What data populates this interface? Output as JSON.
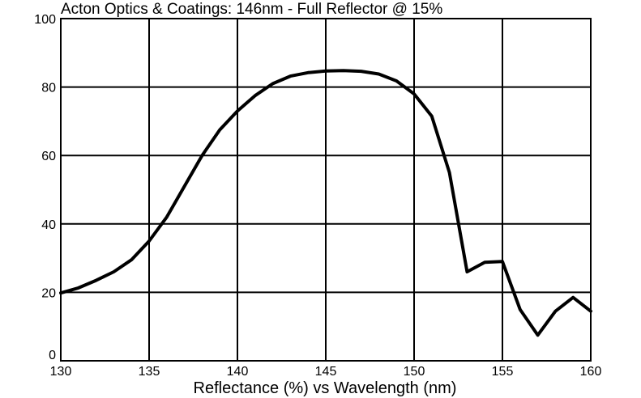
{
  "chart_data": {
    "type": "line",
    "title": "Acton Optics & Coatings:  146nm - Full Reflector @ 15%",
    "xlabel": "Reflectance  (%)   vs   Wavelength  (nm)",
    "ylabel": "",
    "xlim": [
      130,
      160
    ],
    "ylim": [
      0,
      100
    ],
    "x_ticks": [
      "130",
      "135",
      "140",
      "145",
      "150",
      "155",
      "160"
    ],
    "y_ticks": [
      "0",
      "20",
      "40",
      "60",
      "80",
      "100"
    ],
    "grid": true,
    "line_color": "#000000",
    "series": [
      {
        "x": [
          130,
          131,
          132,
          133,
          134,
          135,
          136,
          137,
          138,
          139,
          140,
          141,
          142,
          143,
          144,
          145,
          146,
          147,
          148,
          149,
          150,
          151,
          152,
          153,
          154,
          155,
          156,
          157,
          158,
          159,
          160
        ],
        "values": [
          19.8,
          21.3,
          23.5,
          26.0,
          29.5,
          35.0,
          42.0,
          51.0,
          60.0,
          67.5,
          73.0,
          77.5,
          81.0,
          83.2,
          84.2,
          84.7,
          84.8,
          84.6,
          83.8,
          81.8,
          78.0,
          71.5,
          55.0,
          26.0,
          28.8,
          29.0,
          15.0,
          7.5,
          14.5,
          18.5,
          14.5
        ]
      }
    ]
  }
}
